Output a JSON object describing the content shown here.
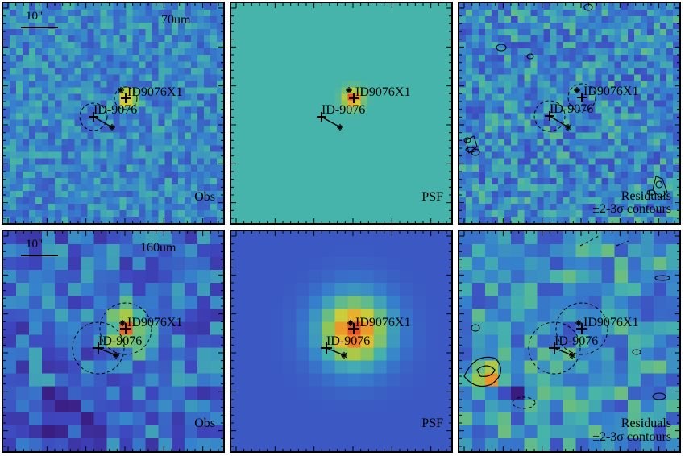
{
  "scalebar": "10\"",
  "rows": [
    {
      "band": "70um",
      "panels": [
        {
          "kind": "obs",
          "label": "Obs"
        },
        {
          "kind": "psf",
          "label": "PSF"
        },
        {
          "kind": "res",
          "label_line1": "Residuals",
          "label_line2": "±2-3σ contours"
        }
      ],
      "sources": {
        "primary": "ID-9076",
        "secondary": "ID9076X1"
      }
    },
    {
      "band": "160um",
      "panels": [
        {
          "kind": "obs",
          "label": "Obs"
        },
        {
          "kind": "psf",
          "label": "PSF"
        },
        {
          "kind": "res",
          "label_line1": "Residuals",
          "label_line2": "±2-3σ contours"
        }
      ],
      "sources": {
        "primary": "ID-9076",
        "secondary": "ID9076X1"
      }
    }
  ],
  "colors": {
    "psf70_background": "#5bb89a",
    "psf160_background": "#3a68c4",
    "peak": "#e0452f"
  }
}
